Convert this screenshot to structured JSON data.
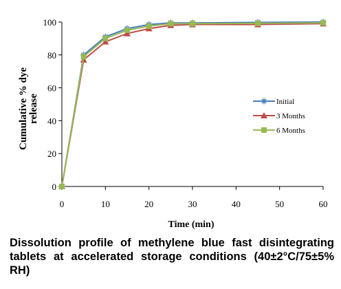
{
  "caption": "Dissolution profile of methylene blue fast disintegrating tablets at accelerated storage conditions (40±2°C/75±5% RH)",
  "chart_data": {
    "type": "line",
    "title": "",
    "xlabel": "Time (min)",
    "ylabel_lines": [
      "Cumulative % dye",
      "release"
    ],
    "x": [
      0,
      5,
      10,
      15,
      20,
      25,
      30,
      45,
      60
    ],
    "xlim": [
      0,
      60
    ],
    "ylim": [
      0,
      100
    ],
    "xticks": [
      0,
      10,
      20,
      30,
      40,
      50,
      60
    ],
    "yticks": [
      0,
      20,
      40,
      60,
      80,
      100
    ],
    "grid": false,
    "legend_position": "right",
    "series": [
      {
        "name": "Initial",
        "marker": "star",
        "color": "#4a7ebb",
        "values": [
          0,
          80,
          91,
          96,
          98.5,
          99.5,
          99.5,
          99.8,
          100
        ]
      },
      {
        "name": "3 Months",
        "marker": "triangle",
        "color": "#be4b48",
        "values": [
          0,
          77,
          88,
          93,
          96,
          98,
          98.5,
          98.5,
          99
        ]
      },
      {
        "name": "6 Months",
        "marker": "square",
        "color": "#98b954",
        "values": [
          0,
          79,
          90,
          95,
          97.5,
          99,
          99,
          99.2,
          99.5
        ]
      }
    ]
  }
}
